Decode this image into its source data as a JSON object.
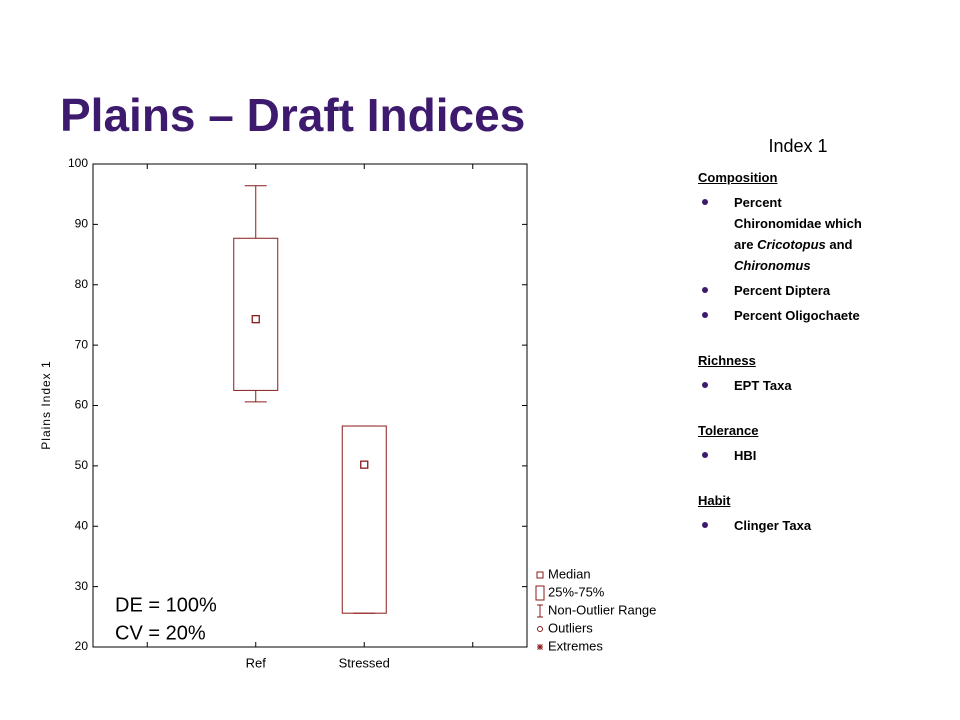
{
  "slide": {
    "title": "Plains – Draft Indices",
    "panel": {
      "title": "Index 1",
      "sections": [
        {
          "heading": "Composition",
          "items": [
            [
              {
                "text": "Percent Chironomidae which are "
              },
              {
                "text": "Cricotopus",
                "italic": true
              },
              {
                "text": " and "
              },
              {
                "text": "Chironomus",
                "italic": true
              }
            ],
            [
              {
                "text": "Percent Diptera"
              }
            ],
            [
              {
                "text": "Percent Oligochaete"
              }
            ]
          ]
        },
        {
          "heading": "Richness",
          "items": [
            [
              {
                "text": "EPT Taxa"
              }
            ]
          ]
        },
        {
          "heading": "Tolerance",
          "items": [
            [
              {
                "text": "HBI"
              }
            ]
          ]
        },
        {
          "heading": "Habit",
          "items": [
            [
              {
                "text": "Clinger Taxa"
              }
            ]
          ]
        }
      ]
    }
  },
  "chart_data": {
    "type": "box",
    "ylabel": "Plains Index 1",
    "categories": [
      null,
      "Ref",
      "Stressed",
      null
    ],
    "ylim": [
      20,
      100
    ],
    "yticks": [
      20,
      30,
      40,
      50,
      60,
      70,
      80,
      90,
      100
    ],
    "color": "#8b1a1a",
    "series": [
      {
        "name": "Median",
        "values": [
          null,
          74.3,
          50.2,
          null
        ]
      },
      {
        "name": "25%-75%",
        "low": [
          null,
          62.5,
          25.6,
          null
        ],
        "high": [
          null,
          87.7,
          56.6,
          null
        ]
      },
      {
        "name": "Non-Outlier Range",
        "low": [
          null,
          60.6,
          25.6,
          null
        ],
        "high": [
          null,
          96.4,
          56.6,
          null
        ]
      },
      {
        "name": "Outliers",
        "values": [
          null,
          null,
          null,
          null
        ]
      },
      {
        "name": "Extremes",
        "values": [
          null,
          null,
          null,
          null
        ]
      }
    ],
    "annotations": [
      "DE = 100%",
      "CV = 20%"
    ]
  }
}
